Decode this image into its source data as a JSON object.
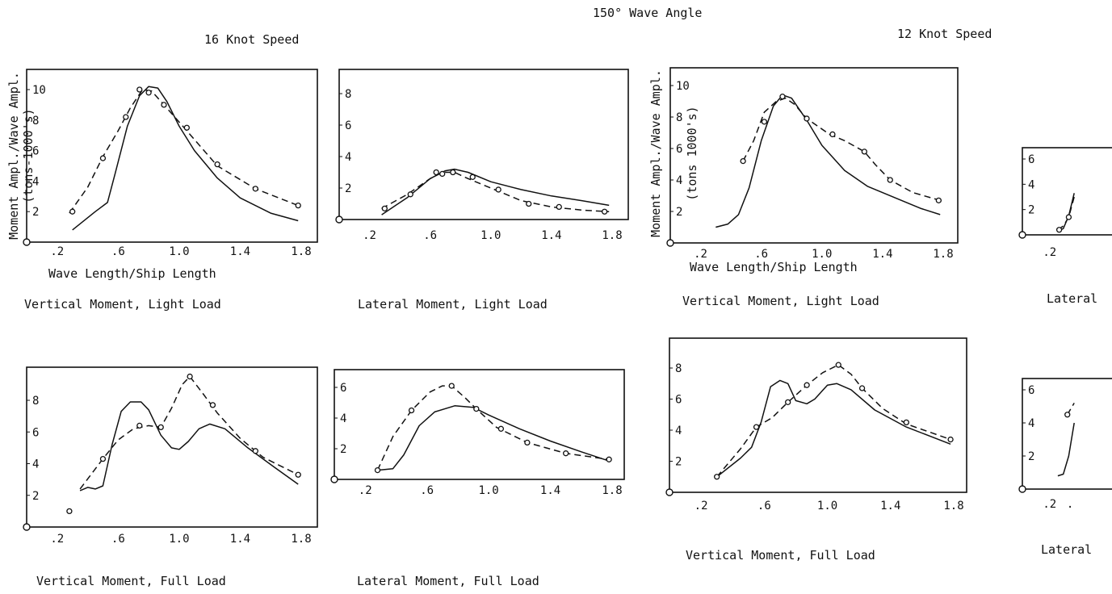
{
  "title": "150° Wave Angle",
  "speed_16": "16 Knot Speed",
  "speed_12": "12 Knot Speed",
  "chart_data": [
    {
      "type": "line",
      "title": "Vertical Moment, Light Load",
      "group": "16 Knot Speed",
      "xlabel": "Wave Length/Ship Length",
      "ylabel": "Moment Ampl./Wave Ampl.",
      "yunit": "(tons-1000's)",
      "xlim": [
        0,
        1.8
      ],
      "ylim": [
        0,
        11
      ],
      "xticks": [
        ".2",
        ".6",
        "1.0",
        "1.4",
        "1.8"
      ],
      "xtick_values": [
        0.2,
        0.6,
        1.0,
        1.4,
        1.8
      ],
      "yticks": [
        "2",
        "4",
        "6",
        "8",
        "10"
      ],
      "ytick_values": [
        2,
        4,
        6,
        8,
        10
      ],
      "series": [
        {
          "style": "solid",
          "x": [
            0.3,
            0.45,
            0.53,
            0.58,
            0.66,
            0.74,
            0.8,
            0.86,
            0.92,
            1.0,
            1.1,
            1.25,
            1.4,
            1.6,
            1.78
          ],
          "y": [
            0.8,
            2.0,
            2.6,
            4.5,
            7.6,
            9.6,
            10.2,
            10.1,
            9.2,
            7.6,
            6.0,
            4.2,
            2.9,
            1.9,
            1.4
          ]
        },
        {
          "style": "dashed",
          "x": [
            0.28,
            0.4,
            0.5,
            0.6,
            0.68,
            0.76,
            0.82,
            0.9,
            1.05,
            1.25,
            1.5,
            1.78
          ],
          "y": [
            1.9,
            3.6,
            5.6,
            7.3,
            8.8,
            10.0,
            9.9,
            9.0,
            7.3,
            5.0,
            3.5,
            2.4
          ]
        },
        {
          "style": "markers",
          "x": [
            0.3,
            0.5,
            0.65,
            0.74,
            0.8,
            0.9,
            1.05,
            1.25,
            1.5,
            1.78
          ],
          "y": [
            2.0,
            5.5,
            8.2,
            10.0,
            9.8,
            9.0,
            7.5,
            5.1,
            3.5,
            2.4
          ]
        }
      ]
    },
    {
      "type": "line",
      "title": "Lateral Moment, Light Load",
      "group": "16 Knot Speed",
      "xlim": [
        0,
        1.8
      ],
      "ylim": [
        0,
        9
      ],
      "xticks": [
        ".2",
        ".6",
        "1.0",
        "1.4",
        "1.8"
      ],
      "xtick_values": [
        0.2,
        0.6,
        1.0,
        1.4,
        1.8
      ],
      "yticks": [
        "2",
        "4",
        "6",
        "8"
      ],
      "ytick_values": [
        2,
        4,
        6,
        8
      ],
      "series": [
        {
          "style": "solid",
          "x": [
            0.28,
            0.45,
            0.6,
            0.7,
            0.76,
            0.85,
            1.0,
            1.2,
            1.4,
            1.6,
            1.78
          ],
          "y": [
            0.3,
            1.4,
            2.6,
            3.1,
            3.2,
            3.0,
            2.4,
            1.9,
            1.5,
            1.2,
            0.9
          ]
        },
        {
          "style": "dashed",
          "x": [
            0.28,
            0.45,
            0.6,
            0.68,
            0.76,
            0.85,
            1.0,
            1.2,
            1.4,
            1.6,
            1.78
          ],
          "y": [
            0.7,
            1.6,
            2.6,
            3.0,
            3.0,
            2.6,
            2.0,
            1.2,
            0.8,
            0.6,
            0.5
          ]
        },
        {
          "style": "markers",
          "x": [
            0.3,
            0.47,
            0.64,
            0.68,
            0.75,
            0.88,
            1.05,
            1.25,
            1.45,
            1.75
          ],
          "y": [
            0.7,
            1.6,
            3.0,
            2.9,
            3.0,
            2.7,
            1.9,
            1.0,
            0.8,
            0.5
          ]
        }
      ]
    },
    {
      "type": "line",
      "title": "Vertical Moment, Full Load",
      "group": "16 Knot Speed",
      "xlim": [
        0,
        1.8
      ],
      "ylim": [
        0,
        10
      ],
      "xticks": [
        ".2",
        ".6",
        "1.0",
        "1.4",
        "1.8"
      ],
      "xtick_values": [
        0.2,
        0.6,
        1.0,
        1.4,
        1.8
      ],
      "yticks": [
        "2",
        "4",
        "6",
        "8"
      ],
      "ytick_values": [
        2,
        4,
        6,
        8
      ],
      "series": [
        {
          "style": "solid",
          "x": [
            0.35,
            0.4,
            0.45,
            0.5,
            0.56,
            0.62,
            0.68,
            0.75,
            0.8,
            0.88,
            0.95,
            1.0,
            1.06,
            1.13,
            1.2,
            1.3,
            1.45,
            1.62,
            1.78
          ],
          "y": [
            2.3,
            2.5,
            2.4,
            2.6,
            5.2,
            7.3,
            7.9,
            7.9,
            7.4,
            5.8,
            5.0,
            4.9,
            5.4,
            6.2,
            6.5,
            6.2,
            5.0,
            3.8,
            2.7
          ]
        },
        {
          "style": "dashed",
          "x": [
            0.35,
            0.5,
            0.6,
            0.7,
            0.8,
            0.88,
            0.95,
            1.02,
            1.07,
            1.15,
            1.25,
            1.4,
            1.55,
            1.78
          ],
          "y": [
            2.4,
            4.3,
            5.5,
            6.2,
            6.4,
            6.3,
            7.5,
            9.0,
            9.5,
            8.5,
            7.2,
            5.6,
            4.4,
            3.3
          ]
        },
        {
          "style": "markers",
          "x": [
            0.28,
            0.5,
            0.74,
            0.88,
            1.07,
            1.22,
            1.5,
            1.78
          ],
          "y": [
            1.0,
            4.3,
            6.4,
            6.3,
            9.5,
            7.7,
            4.8,
            3.3
          ]
        }
      ]
    },
    {
      "type": "line",
      "title": "Lateral Moment, Full Load",
      "group": "16 Knot Speed",
      "xlim": [
        0,
        1.8
      ],
      "ylim": [
        0,
        7
      ],
      "xticks": [
        ".2",
        ".6",
        "1.0",
        "1.4",
        "1.8"
      ],
      "xtick_values": [
        0.2,
        0.6,
        1.0,
        1.4,
        1.8
      ],
      "yticks": [
        "2",
        "4",
        "6"
      ],
      "ytick_values": [
        2,
        4,
        6
      ],
      "series": [
        {
          "style": "solid",
          "x": [
            0.28,
            0.38,
            0.45,
            0.55,
            0.65,
            0.78,
            0.9,
            1.0,
            1.2,
            1.4,
            1.6,
            1.78
          ],
          "y": [
            0.6,
            0.7,
            1.6,
            3.5,
            4.4,
            4.8,
            4.7,
            4.2,
            3.3,
            2.5,
            1.8,
            1.2
          ]
        },
        {
          "style": "dashed",
          "x": [
            0.28,
            0.38,
            0.5,
            0.62,
            0.7,
            0.76,
            0.85,
            0.92,
            1.05,
            1.25,
            1.5,
            1.78
          ],
          "y": [
            0.6,
            2.8,
            4.5,
            5.7,
            6.1,
            6.1,
            5.3,
            4.6,
            3.4,
            2.4,
            1.7,
            1.3
          ]
        },
        {
          "style": "markers",
          "x": [
            0.28,
            0.5,
            0.76,
            0.92,
            1.08,
            1.25,
            1.5,
            1.78
          ],
          "y": [
            0.6,
            4.5,
            6.1,
            4.6,
            3.3,
            2.4,
            1.7,
            1.3
          ]
        }
      ]
    },
    {
      "type": "line",
      "title": "Vertical Moment, Light Load",
      "group": "12 Knot Speed",
      "xlabel": "Wave Length/Ship Length",
      "ylabel": "Moment Ampl./Wave Ampl.",
      "yunit": "(tons 1000's)",
      "xlim": [
        0,
        1.8
      ],
      "ylim": [
        0,
        11
      ],
      "xticks": [
        ".2",
        ".6",
        "1.0",
        "1.4",
        "1.8"
      ],
      "xtick_values": [
        0.2,
        0.6,
        1.0,
        1.4,
        1.8
      ],
      "yticks": [
        "2",
        "4",
        "6",
        "8",
        "10"
      ],
      "ytick_values": [
        2,
        4,
        6,
        8,
        10
      ],
      "series": [
        {
          "style": "solid",
          "x": [
            0.3,
            0.38,
            0.45,
            0.52,
            0.6,
            0.68,
            0.74,
            0.8,
            0.9,
            1.0,
            1.15,
            1.3,
            1.5,
            1.65,
            1.78
          ],
          "y": [
            1.0,
            1.2,
            1.8,
            3.5,
            6.5,
            8.7,
            9.4,
            9.2,
            7.8,
            6.2,
            4.6,
            3.6,
            2.8,
            2.2,
            1.8
          ]
        },
        {
          "style": "dashed",
          "x": [
            0.48,
            0.55,
            0.62,
            0.7,
            0.76,
            0.82,
            0.9,
            1.05,
            1.15,
            1.28,
            1.35,
            1.45,
            1.6,
            1.78
          ],
          "y": [
            5.2,
            6.5,
            8.3,
            9.0,
            9.2,
            8.8,
            7.9,
            6.9,
            6.5,
            5.8,
            5.0,
            4.0,
            3.2,
            2.7
          ]
        },
        {
          "style": "markers",
          "x": [
            0.48,
            0.62,
            0.74,
            0.9,
            1.07,
            1.28,
            1.45,
            1.77
          ],
          "y": [
            5.2,
            7.7,
            9.3,
            7.9,
            6.9,
            5.8,
            4.0,
            2.7
          ]
        }
      ]
    },
    {
      "type": "line",
      "title": "Vertical Moment, Full Load",
      "group": "12 Knot Speed",
      "xlim": [
        0,
        1.8
      ],
      "ylim": [
        0,
        10
      ],
      "xticks": [
        ".2",
        ".6",
        "1.0",
        "1.4",
        "1.8"
      ],
      "xtick_values": [
        0.2,
        0.6,
        1.0,
        1.4,
        1.8
      ],
      "yticks": [
        "2",
        "4",
        "6",
        "8"
      ],
      "ytick_values": [
        2,
        4,
        6,
        8
      ],
      "series": [
        {
          "style": "solid",
          "x": [
            0.3,
            0.45,
            0.52,
            0.58,
            0.64,
            0.7,
            0.75,
            0.8,
            0.87,
            0.92,
            1.0,
            1.06,
            1.15,
            1.3,
            1.5,
            1.78
          ],
          "y": [
            1.0,
            2.2,
            2.9,
            4.5,
            6.8,
            7.2,
            7.0,
            5.9,
            5.7,
            6.0,
            6.9,
            7.0,
            6.6,
            5.3,
            4.2,
            3.1
          ]
        },
        {
          "style": "dashed",
          "x": [
            0.3,
            0.45,
            0.55,
            0.65,
            0.75,
            0.87,
            0.97,
            1.07,
            1.15,
            1.22,
            1.35,
            1.5,
            1.78
          ],
          "y": [
            1.0,
            2.8,
            4.2,
            4.8,
            5.8,
            6.9,
            7.7,
            8.2,
            7.6,
            6.7,
            5.4,
            4.4,
            3.4
          ]
        },
        {
          "style": "markers",
          "x": [
            0.3,
            0.55,
            0.75,
            0.87,
            1.07,
            1.22,
            1.5,
            1.78
          ],
          "y": [
            1.0,
            4.2,
            5.8,
            6.9,
            8.2,
            6.7,
            4.5,
            3.4
          ]
        }
      ]
    },
    {
      "type": "line",
      "title": "Lateral",
      "group": "12 Knot Speed",
      "ylim": [
        0,
        7
      ],
      "xticks": [
        ".2"
      ],
      "xtick_values": [
        0.2
      ],
      "yticks": [
        "2",
        "4",
        "6"
      ],
      "ytick_values": [
        2,
        4,
        6
      ],
      "series": [
        {
          "style": "solid",
          "x": [
            0.26,
            0.3,
            0.34,
            0.38
          ],
          "y": [
            0.3,
            0.5,
            1.5,
            3.3
          ]
        },
        {
          "style": "dashed",
          "x": [
            0.26,
            0.3,
            0.34,
            0.38
          ],
          "y": [
            0.4,
            0.7,
            1.4,
            3.0
          ]
        },
        {
          "style": "markers",
          "x": [
            0.27,
            0.34
          ],
          "y": [
            0.4,
            1.4
          ]
        }
      ]
    },
    {
      "type": "line",
      "title": "Lateral",
      "group": "12 Knot Speed",
      "ylim": [
        0,
        7
      ],
      "xticks": [
        ".2",
        "."
      ],
      "xtick_values": [
        0.2,
        0.35
      ],
      "yticks": [
        "2",
        "4",
        "6"
      ],
      "ytick_values": [
        2,
        4,
        6
      ],
      "series": [
        {
          "style": "solid",
          "x": [
            0.26,
            0.3,
            0.34,
            0.38
          ],
          "y": [
            0.8,
            0.9,
            2.0,
            4.0
          ]
        },
        {
          "style": "dashed",
          "x": [
            0.33,
            0.38
          ],
          "y": [
            4.5,
            5.2
          ]
        },
        {
          "style": "markers",
          "x": [
            0.33
          ],
          "y": [
            4.5
          ]
        }
      ]
    }
  ]
}
